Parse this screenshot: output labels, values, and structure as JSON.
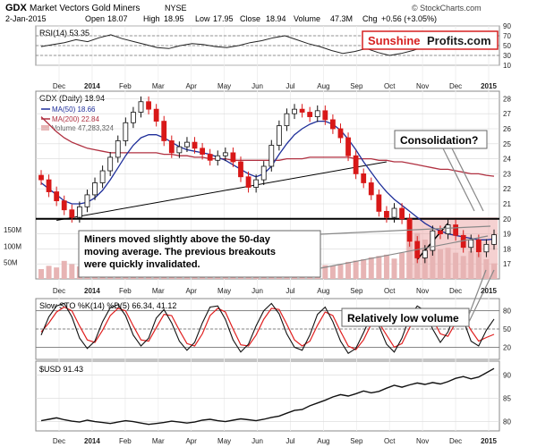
{
  "header": {
    "ticker": "GDX",
    "name": "Market Vectors Gold Miners",
    "exchange": "NYSE",
    "date": "2-Jan-2015",
    "open_label": "Open",
    "open": "18.07",
    "high_label": "High",
    "high": "18.95",
    "low_label": "Low",
    "low": "17.95",
    "close_label": "Close",
    "close": "18.94",
    "volume_label": "Volume",
    "volume": "47.3M",
    "chg_label": "Chg",
    "chg": "+0.56 (+3.05%)",
    "credit": "© StockCharts.com"
  },
  "brand": {
    "left": "Sunshine",
    "right": "Profits.com",
    "left_color": "#d62020",
    "right_color": "#1a1a1a"
  },
  "colors": {
    "ma50": "#1f2f9a",
    "ma200": "#b03040",
    "volume": "#e7b4b4",
    "candle_down": "#d81818",
    "candle_up": "#111111",
    "highlight": "#e89a9a",
    "sto_d": "#e02020",
    "grid": "#d8d8d8"
  },
  "months": [
    "Dec",
    "2014",
    "Feb",
    "Mar",
    "Apr",
    "May",
    "Jun",
    "Jul",
    "Aug",
    "Sep",
    "Oct",
    "Nov",
    "Dec",
    "2015"
  ],
  "chart_data": [
    {
      "type": "line",
      "panel": "rsi",
      "title": "RSI(14) 53.35",
      "ylim": [
        10,
        90
      ],
      "yticks": [
        10,
        30,
        50,
        70,
        90
      ],
      "reference_lines": [
        30,
        50,
        70
      ],
      "values": [
        48,
        52,
        56,
        62,
        58,
        66,
        72,
        64,
        58,
        52,
        46,
        44,
        50,
        54,
        52,
        48,
        46,
        50,
        56,
        60,
        66,
        70,
        62,
        54,
        48,
        40,
        34,
        38,
        44,
        36,
        30,
        34,
        40,
        48,
        42,
        50,
        56,
        52,
        48,
        53
      ]
    },
    {
      "type": "candlestick",
      "panel": "price",
      "title": "GDX (Daily) 18.94",
      "ylim": [
        16,
        28.5
      ],
      "yticks": [
        17,
        18,
        19,
        20,
        21,
        22,
        23,
        24,
        25,
        26,
        27,
        28
      ],
      "legend": [
        "MA(50) 18.66",
        "MA(200) 22.84",
        "Volume 47,283,324"
      ],
      "close": [
        22.6,
        21.8,
        21.2,
        20.6,
        20.1,
        20.8,
        21.6,
        22.4,
        23.2,
        24.1,
        25.2,
        26.4,
        27.1,
        27.8,
        27.3,
        26.5,
        25.2,
        24.4,
        24.8,
        25.1,
        24.7,
        24.3,
        23.9,
        24.2,
        24.4,
        23.8,
        22.8,
        22.1,
        22.6,
        23.5,
        24.9,
        26.2,
        27.0,
        27.3,
        27.1,
        26.8,
        27.2,
        26.6,
        26.0,
        25.4,
        24.2,
        23.0,
        22.4,
        21.6,
        20.5,
        20.1,
        20.7,
        20.0,
        18.5,
        17.4,
        17.9,
        19.2,
        19.0,
        19.6,
        18.9,
        18.1,
        18.6,
        17.8,
        18.3,
        18.94
      ],
      "ma50": [
        22.4,
        22.0,
        21.6,
        21.2,
        21.0,
        21.0,
        21.1,
        21.4,
        21.9,
        22.6,
        23.4,
        24.2,
        24.9,
        25.4,
        25.6,
        25.6,
        25.4,
        25.1,
        24.8,
        24.6,
        24.5,
        24.4,
        24.3,
        24.1,
        23.9,
        23.6,
        23.3,
        23.0,
        22.8,
        23.0,
        23.5,
        24.3,
        25.0,
        25.6,
        26.0,
        26.3,
        26.5,
        26.5,
        26.3,
        25.9,
        25.3,
        24.6,
        23.8,
        23.1,
        22.4,
        21.8,
        21.3,
        20.9,
        20.5,
        20.1,
        19.7,
        19.4,
        19.2,
        19.0,
        18.9,
        18.8,
        18.7,
        18.6,
        18.6,
        18.66
      ],
      "ma200": [
        26.8,
        26.3,
        25.8,
        25.4,
        25.1,
        24.9,
        24.7,
        24.6,
        24.5,
        24.4,
        24.4,
        24.4,
        24.4,
        24.4,
        24.4,
        24.4,
        24.3,
        24.3,
        24.2,
        24.2,
        24.1,
        24.1,
        24.0,
        24.0,
        24.0,
        23.9,
        23.9,
        23.9,
        23.9,
        23.9,
        23.9,
        23.9,
        24.0,
        24.0,
        24.0,
        24.1,
        24.1,
        24.1,
        24.1,
        24.1,
        24.1,
        24.0,
        24.0,
        24.0,
        23.9,
        23.9,
        23.8,
        23.8,
        23.7,
        23.6,
        23.5,
        23.4,
        23.3,
        23.3,
        23.2,
        23.1,
        23.0,
        23.0,
        22.9,
        22.84
      ],
      "volume": [
        30,
        40,
        35,
        55,
        45,
        38,
        42,
        36,
        44,
        48,
        52,
        40,
        38,
        46,
        42,
        36,
        34,
        38,
        32,
        30,
        28,
        34,
        30,
        32,
        36,
        40,
        44,
        38,
        34,
        40,
        46,
        42,
        38,
        36,
        40,
        34,
        38,
        42,
        40,
        44,
        52,
        56,
        60,
        66,
        70,
        74,
        62,
        80,
        110,
        140,
        120,
        100,
        90,
        95,
        80,
        70,
        85,
        78,
        60,
        47.3
      ],
      "volume_axis": [
        "50M",
        "100M",
        "150M"
      ]
    },
    {
      "type": "line",
      "panel": "stochastic",
      "title": "Slow STO %K(14) %D(5) 66.34, 41.12",
      "ylim": [
        0,
        100
      ],
      "yticks": [
        20,
        50,
        80
      ],
      "reference_lines": [
        20,
        50,
        80
      ],
      "k": [
        40,
        70,
        88,
        92,
        70,
        35,
        18,
        30,
        62,
        85,
        90,
        72,
        40,
        22,
        35,
        68,
        82,
        60,
        30,
        15,
        28,
        60,
        86,
        88,
        66,
        32,
        12,
        25,
        55,
        80,
        92,
        75,
        42,
        20,
        15,
        40,
        74,
        86,
        62,
        30,
        10,
        18,
        44,
        72,
        55,
        25,
        12,
        35,
        70,
        88,
        80,
        50,
        28,
        45,
        78,
        65,
        30,
        22,
        48,
        66.34
      ],
      "d": [
        45,
        60,
        78,
        86,
        80,
        55,
        32,
        28,
        48,
        72,
        84,
        80,
        55,
        32,
        30,
        52,
        74,
        72,
        48,
        26,
        22,
        42,
        72,
        84,
        78,
        50,
        24,
        22,
        40,
        66,
        84,
        82,
        58,
        32,
        22,
        30,
        56,
        78,
        72,
        46,
        22,
        16,
        32,
        58,
        60,
        40,
        20,
        26,
        52,
        76,
        82,
        66,
        42,
        38,
        60,
        70,
        48,
        30,
        36,
        41.12
      ]
    },
    {
      "type": "line",
      "panel": "usd",
      "title": "$USD 91.43",
      "ylim": [
        78,
        93
      ],
      "yticks": [
        80,
        85,
        90
      ],
      "values": [
        80.2,
        80.5,
        80.8,
        80.4,
        80.1,
        79.9,
        80.3,
        80.0,
        79.8,
        79.6,
        79.9,
        80.2,
        80.0,
        79.7,
        79.4,
        79.6,
        79.8,
        80.1,
        79.9,
        79.7,
        79.9,
        80.3,
        80.5,
        80.2,
        80.0,
        80.3,
        80.6,
        80.4,
        80.2,
        80.5,
        80.9,
        81.2,
        81.8,
        82.4,
        82.6,
        83.4,
        84.0,
        84.6,
        85.3,
        85.8,
        85.5,
        86.0,
        86.6,
        86.2,
        86.5,
        87.2,
        87.8,
        87.4,
        87.9,
        88.3,
        88.0,
        88.4,
        88.1,
        88.6,
        89.3,
        89.7,
        89.2,
        89.6,
        90.5,
        91.43
      ]
    }
  ],
  "annotations": {
    "consolidation": "Consolidation?",
    "miners_text": "Miners moved slightly above the 50-day moving average. The previous breakouts were quickly invalidated.",
    "low_volume": "Relatively low volume"
  }
}
